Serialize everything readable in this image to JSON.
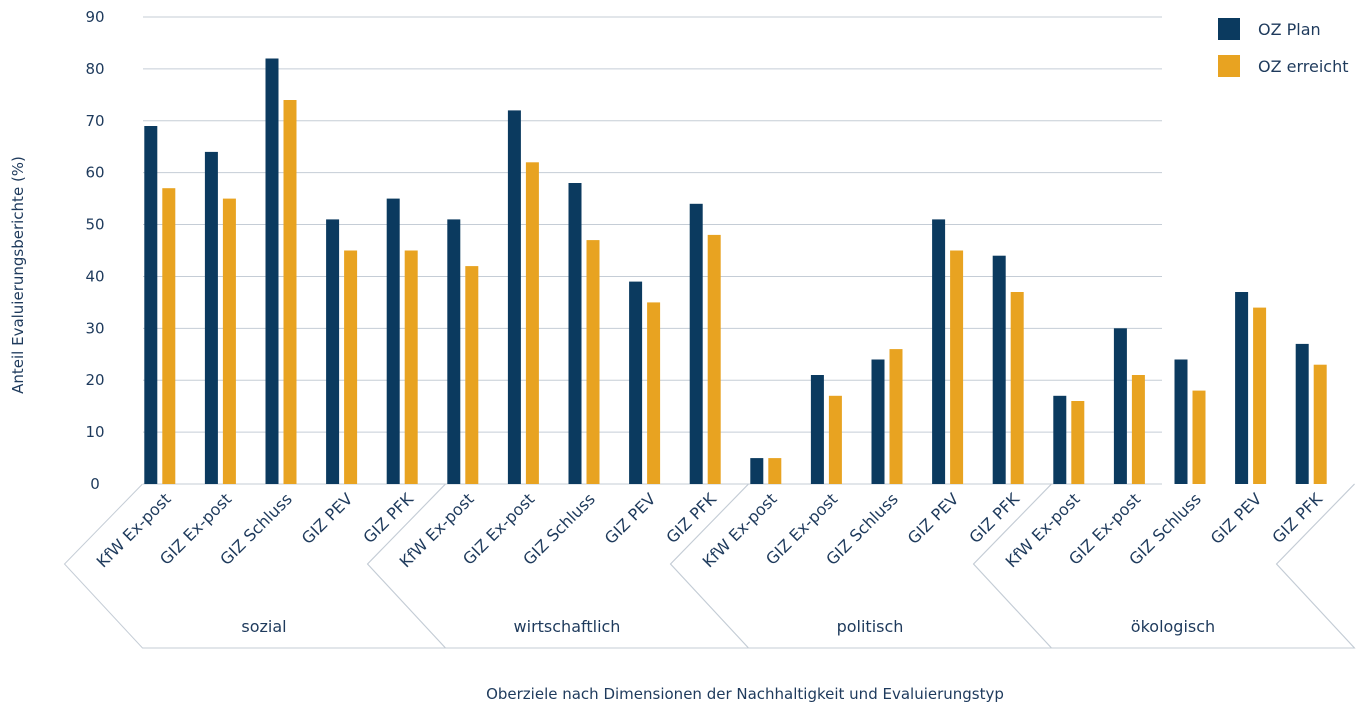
{
  "chart_data": {
    "type": "bar",
    "xlabel": "Oberziele nach Dimensionen der Nachhaltigkeit und Evaluierungstyp",
    "ylabel": "Anteil Evaluierungsberichte (%)",
    "ylim": [
      0,
      90
    ],
    "yticks": [
      "0",
      "10",
      "20",
      "30",
      "40",
      "50",
      "60",
      "70",
      "80",
      "90"
    ],
    "grid": true,
    "legend_position": "top-right",
    "groups": [
      {
        "label": "sozial",
        "categories": [
          "KfW Ex-post",
          "GIZ Ex-post",
          "GIZ Schluss",
          "GIZ PEV",
          "GIZ PFK"
        ]
      },
      {
        "label": "wirtschaftlich",
        "categories": [
          "KfW Ex-post",
          "GIZ Ex-post",
          "GIZ Schluss",
          "GIZ PEV",
          "GIZ PFK"
        ]
      },
      {
        "label": "politisch",
        "categories": [
          "KfW Ex-post",
          "GIZ Ex-post",
          "GIZ Schluss",
          "GIZ PEV",
          "GIZ PFK"
        ]
      },
      {
        "label": "ökologisch",
        "categories": [
          "KfW Ex-post",
          "GIZ Ex-post",
          "GIZ Schluss",
          "GIZ PEV",
          "GIZ PFK"
        ]
      }
    ],
    "series": [
      {
        "name": "OZ Plan",
        "color": "#0b3a5f",
        "values": [
          69,
          64,
          82,
          51,
          55,
          51,
          72,
          58,
          39,
          54,
          5,
          21,
          24,
          51,
          44,
          17,
          30,
          24,
          37,
          27
        ]
      },
      {
        "name": "OZ erreicht",
        "color": "#e8a321",
        "values": [
          57,
          55,
          74,
          45,
          45,
          42,
          62,
          47,
          35,
          48,
          5,
          17,
          26,
          45,
          37,
          16,
          21,
          18,
          34,
          23
        ]
      }
    ],
    "colors": {
      "grid": "#c5cdd6",
      "text": "#1e3a5c",
      "frame": "#c5cdd6"
    }
  }
}
